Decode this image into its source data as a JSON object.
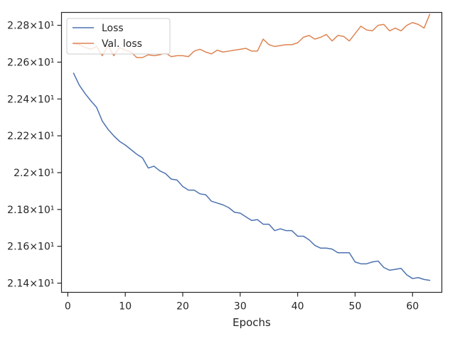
{
  "chart_data": {
    "type": "line",
    "xlabel": "Epochs",
    "ylabel": "",
    "xlim": [
      -1.1,
      65.1
    ],
    "ylim": [
      21.35,
      22.87
    ],
    "x_ticks": [
      0,
      10,
      20,
      30,
      40,
      50,
      60
    ],
    "y_ticks": [
      {
        "value": 21.4,
        "label": "2.14×10¹"
      },
      {
        "value": 21.6,
        "label": "2.16×10¹"
      },
      {
        "value": 21.8,
        "label": "2.18×10¹"
      },
      {
        "value": 22.0,
        "label": "2.2×10¹"
      },
      {
        "value": 22.2,
        "label": "2.22×10¹"
      },
      {
        "value": 22.4,
        "label": "2.24×10¹"
      },
      {
        "value": 22.6,
        "label": "2.26×10¹"
      },
      {
        "value": 22.8,
        "label": "2.28×10¹"
      }
    ],
    "grid": false,
    "legend_position": "top-left",
    "x": [
      1,
      2,
      3,
      4,
      5,
      6,
      7,
      8,
      9,
      10,
      11,
      12,
      13,
      14,
      15,
      16,
      17,
      18,
      19,
      20,
      21,
      22,
      23,
      24,
      25,
      26,
      27,
      28,
      29,
      30,
      31,
      32,
      33,
      34,
      35,
      36,
      37,
      38,
      39,
      40,
      41,
      42,
      43,
      44,
      45,
      46,
      47,
      48,
      49,
      50,
      51,
      52,
      53,
      54,
      55,
      56,
      57,
      58,
      59,
      60,
      61,
      62,
      63
    ],
    "series": [
      {
        "name": "Loss",
        "color": "#4c72b0",
        "values": [
          22.54,
          22.475,
          22.43,
          22.39,
          22.355,
          22.28,
          22.235,
          22.2,
          22.17,
          22.15,
          22.125,
          22.1,
          22.08,
          22.025,
          22.035,
          22.01,
          21.995,
          21.965,
          21.96,
          21.925,
          21.905,
          21.905,
          21.885,
          21.88,
          21.845,
          21.835,
          21.825,
          21.81,
          21.785,
          21.78,
          21.76,
          21.74,
          21.745,
          21.72,
          21.72,
          21.685,
          21.695,
          21.685,
          21.685,
          21.655,
          21.655,
          21.635,
          21.605,
          21.59,
          21.59,
          21.585,
          21.565,
          21.565,
          21.565,
          21.515,
          21.505,
          21.505,
          21.515,
          21.52,
          21.485,
          21.47,
          21.475,
          21.48,
          21.445,
          21.425,
          21.43,
          21.42,
          21.415
        ]
      },
      {
        "name": "Val. loss",
        "color": "#dd8452",
        "values": [
          22.7,
          22.695,
          22.68,
          22.67,
          22.685,
          22.635,
          22.69,
          22.635,
          22.68,
          22.665,
          22.655,
          22.625,
          22.625,
          22.64,
          22.635,
          22.64,
          22.65,
          22.63,
          22.635,
          22.635,
          22.63,
          22.66,
          22.67,
          22.655,
          22.645,
          22.665,
          22.655,
          22.66,
          22.665,
          22.67,
          22.675,
          22.66,
          22.66,
          22.725,
          22.695,
          22.685,
          22.69,
          22.695,
          22.695,
          22.705,
          22.735,
          22.745,
          22.725,
          22.735,
          22.75,
          22.715,
          22.745,
          22.74,
          22.715,
          22.755,
          22.795,
          22.775,
          22.77,
          22.8,
          22.805,
          22.77,
          22.785,
          22.77,
          22.8,
          22.815,
          22.805,
          22.785,
          22.86
        ]
      }
    ]
  }
}
